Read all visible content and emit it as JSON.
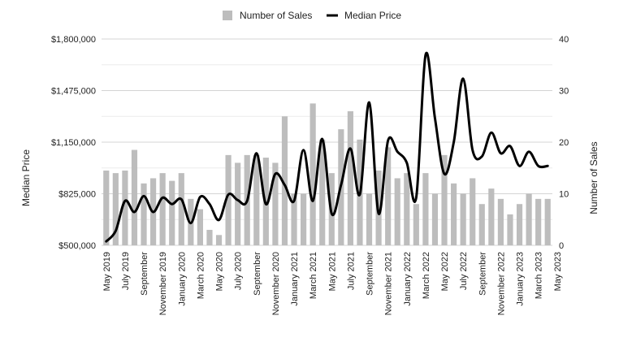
{
  "chart_data": {
    "type": "bar+line",
    "title": "",
    "legend": [
      "Number of Sales",
      "Median Price"
    ],
    "legend_position": "top",
    "y_left": {
      "label": "Median Price",
      "min": 500000,
      "max": 1800000,
      "ticks": [
        500000,
        825000,
        1150000,
        1475000,
        1800000
      ],
      "tick_labels": [
        "$500,000",
        "$825,000",
        "$1,150,000",
        "$1,475,000",
        "$1,800,000"
      ]
    },
    "y_right": {
      "label": "Number of Sales",
      "min": 0,
      "max": 40,
      "ticks": [
        0,
        10,
        20,
        30,
        40
      ],
      "tick_labels": [
        "0",
        "10",
        "20",
        "30",
        "40"
      ]
    },
    "x_tick_labels": [
      "May 2019",
      "July 2019",
      "September",
      "November 2019",
      "January 2020",
      "March 2020",
      "May 2020",
      "July 2020",
      "September",
      "November 2020",
      "January 2021",
      "March 2021",
      "May 2021",
      "July 2021",
      "September",
      "November 2021",
      "January 2022",
      "March 2022",
      "May 2022",
      "July 2022",
      "September",
      "November 2022",
      "January 2023",
      "March 2023",
      "May 2023"
    ],
    "bar_series": {
      "name": "Number of Sales",
      "color": "#bdbdbd",
      "values": [
        14.5,
        14,
        14.5,
        18.5,
        12,
        13,
        14,
        12.5,
        14,
        9,
        7,
        3,
        2,
        17.5,
        16,
        17.5,
        17.5,
        17,
        16,
        25,
        10,
        10,
        27.5,
        20.5,
        14,
        22.5,
        26,
        20.5,
        10,
        14.5,
        19,
        13,
        14,
        8,
        14,
        10,
        17.5,
        12,
        10,
        13,
        8,
        11,
        9,
        6,
        8,
        10,
        9,
        9
      ]
    },
    "line_series": {
      "name": "Median Price",
      "color": "#000000",
      "values": [
        525000,
        590000,
        780000,
        710000,
        810000,
        710000,
        800000,
        760000,
        790000,
        640000,
        805000,
        760000,
        660000,
        820000,
        785000,
        780000,
        1080000,
        760000,
        950000,
        880000,
        780000,
        1100000,
        780000,
        1170000,
        700000,
        880000,
        1110000,
        820000,
        1400000,
        700000,
        1160000,
        1090000,
        1020000,
        800000,
        1700000,
        1300000,
        950000,
        1150000,
        1550000,
        1100000,
        1060000,
        1210000,
        1080000,
        1125000,
        1000000,
        1090000,
        1000000,
        1000000
      ]
    }
  }
}
